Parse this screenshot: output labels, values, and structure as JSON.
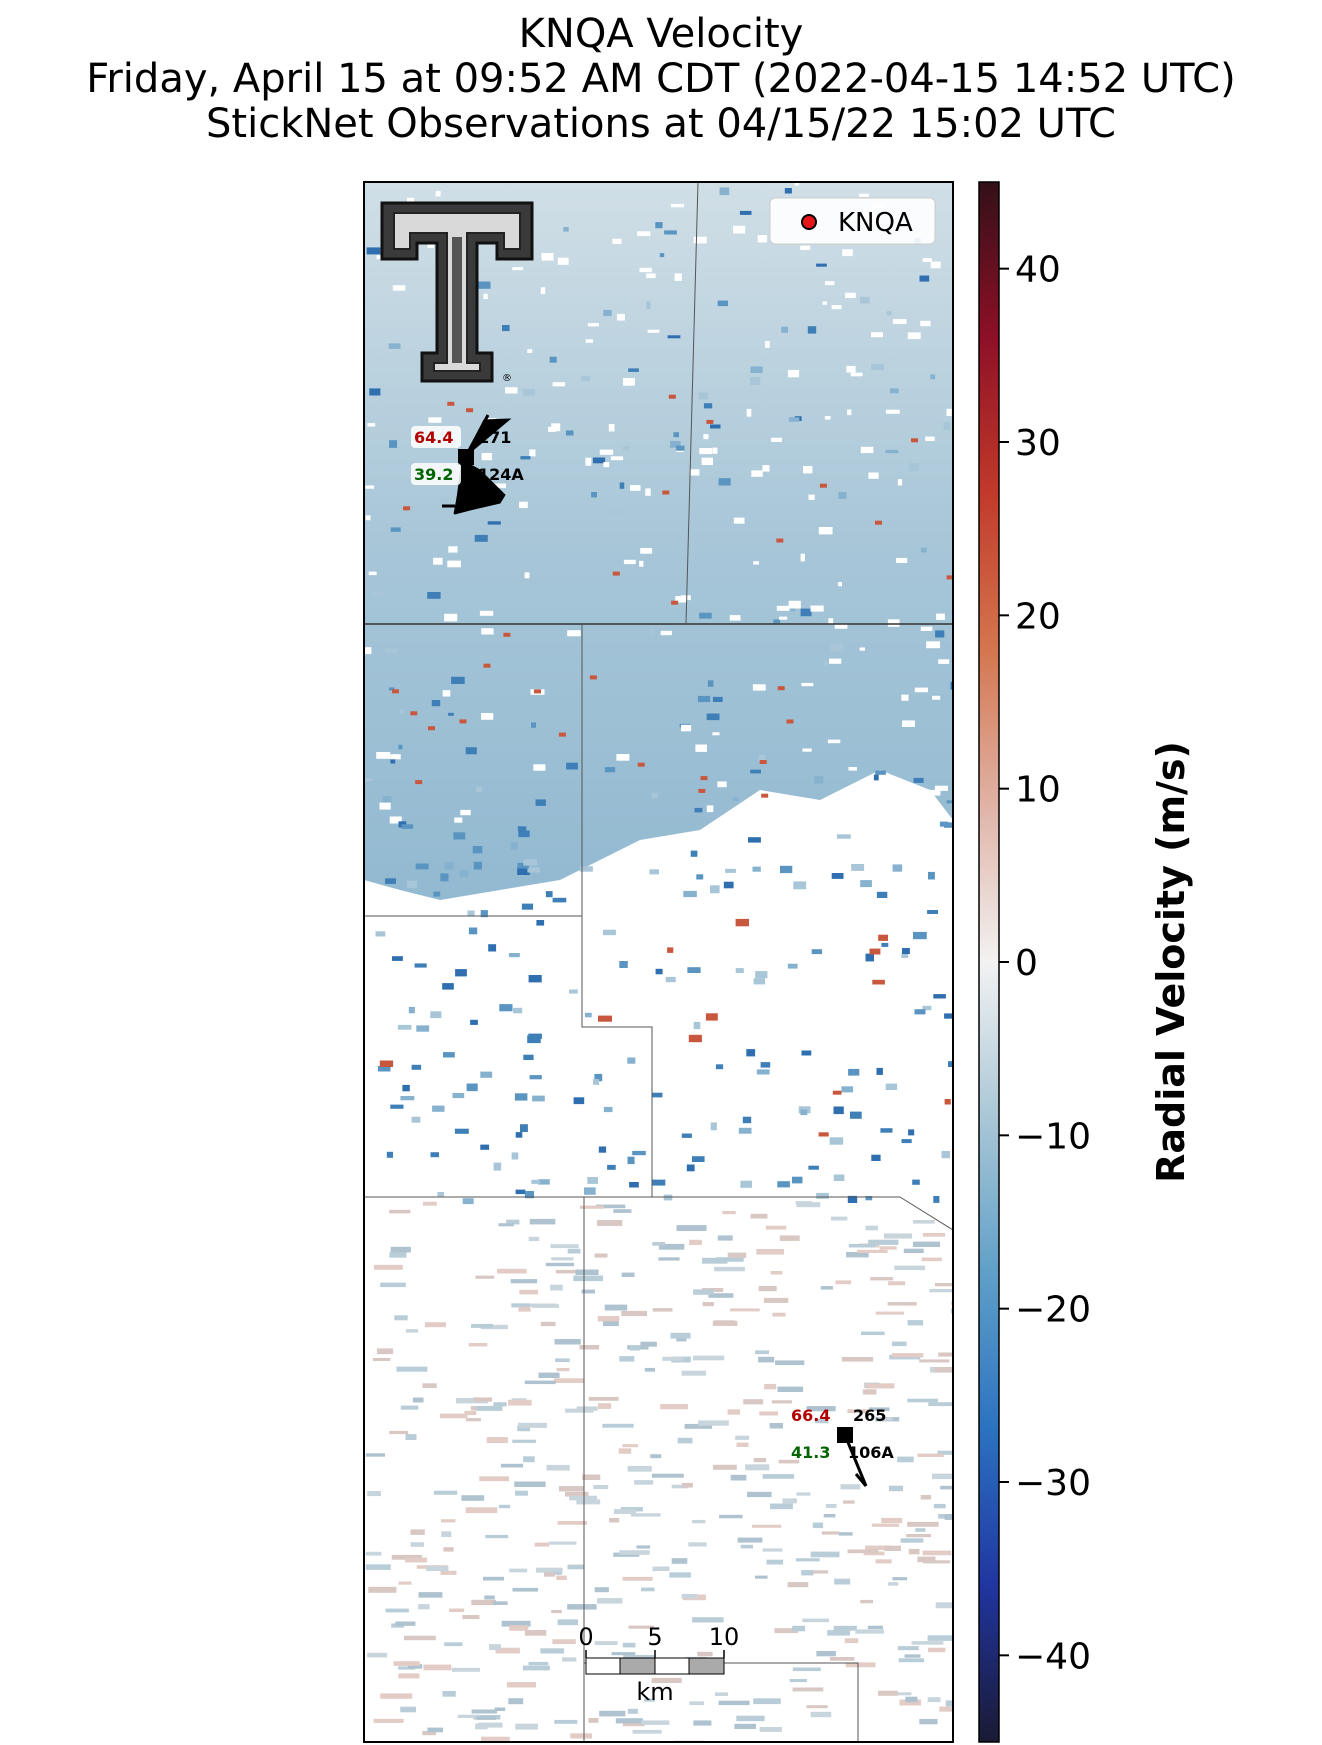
{
  "title": {
    "line1": "KNQA Velocity",
    "line2": "Friday, April 15 at 09:52 AM CDT (2022-04-15 14:52 UTC)",
    "line3": "StickNet Observations at 04/15/22 15:02 UTC"
  },
  "legend": {
    "radar_label": "KNQA",
    "radar_color": "#e8161b"
  },
  "colorbar": {
    "label": "Radial Velocity (m/s)",
    "vmin": -45,
    "vmax": 45,
    "ticks": [
      "40",
      "30",
      "20",
      "10",
      "0",
      "−10",
      "−20",
      "−30",
      "−40"
    ],
    "tick_values": [
      40,
      30,
      20,
      10,
      0,
      -10,
      -20,
      -30,
      -40
    ],
    "colors": [
      "#1a1a33",
      "#2035a0",
      "#2b72c0",
      "#5f9fc8",
      "#a9c7d6",
      "#f2f2f2",
      "#e0b3a6",
      "#d4764f",
      "#c23a2a",
      "#8e1026",
      "#331018"
    ]
  },
  "stations": [
    {
      "id": "124A",
      "temp": "64.4",
      "dewpoint": "39.2",
      "pressure": "171",
      "temp_color": "#b20000",
      "dew_color": "#006400"
    },
    {
      "id": "106A",
      "temp": "66.4",
      "dewpoint": "41.3",
      "pressure": "265",
      "temp_color": "#b20000",
      "dew_color": "#006400"
    }
  ],
  "scale_bar": {
    "labels": [
      "0",
      "5",
      "10"
    ],
    "unit": "km"
  },
  "logo": {
    "name": "texas-tech-double-t-logo",
    "mark": "®"
  }
}
